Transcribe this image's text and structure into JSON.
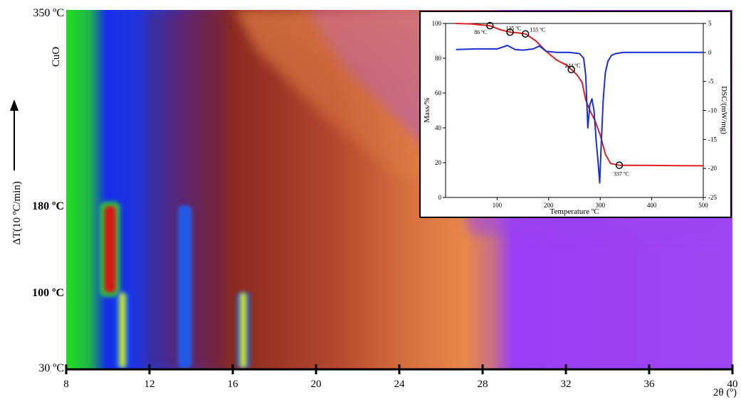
{
  "chart_data": [
    {
      "type": "heatmap",
      "title": "",
      "xlabel": "2θ (º)",
      "ylabel": "ΔT(10 ºC/min)",
      "xlim": [
        8,
        40
      ],
      "x_ticks": [
        8,
        12,
        16,
        20,
        24,
        28,
        32,
        36,
        40
      ],
      "x_tick_labels": [
        "8",
        "12",
        "16",
        "20",
        "24",
        "28",
        "32",
        "36",
        "40"
      ],
      "y_temperatures": [
        30,
        100,
        180,
        350
      ],
      "y_tick_labels": [
        "30 ºC",
        "100 ºC",
        "180 ºC",
        "350 ºC"
      ],
      "y_tick_bold": [
        false,
        true,
        true,
        false
      ],
      "phase_label": "CuO",
      "arrow_direction": "up",
      "colormap": [
        "#22e020",
        "#1530e8",
        "#8a2a20",
        "#e8884a",
        "#9a3ef5"
      ],
      "features": [
        {
          "two_theta": 10.1,
          "t_from": 100,
          "t_to": 180,
          "color": "#d81818",
          "label": "intense peak"
        },
        {
          "two_theta": 10.7,
          "t_from": 30,
          "t_to": 100,
          "color": "#c8e030",
          "label": "peak"
        },
        {
          "two_theta": 16.5,
          "t_from": 30,
          "t_to": 100,
          "color": "#c8e030",
          "label": "peak"
        },
        {
          "two_theta": 13.7,
          "t_from": 30,
          "t_to": 180,
          "color": "#1a58f0",
          "label": "peak"
        }
      ]
    },
    {
      "type": "line",
      "title": "",
      "xlabel": "Temperature ºC",
      "ylabel": "Mass/%",
      "y2label": "DSC/(mW/mg)",
      "xlim": [
        0,
        500
      ],
      "ylim": [
        0,
        100
      ],
      "y2lim": [
        -25,
        5
      ],
      "x_ticks": [
        100,
        200,
        300,
        400,
        500
      ],
      "y_ticks": [
        0,
        20,
        40,
        60,
        80,
        100
      ],
      "y2_ticks": [
        5,
        0,
        -5,
        -10,
        -15,
        -20,
        -25
      ],
      "series": [
        {
          "axis": "left",
          "color": "#e02020",
          "x": [
            20,
            50,
            86,
            105,
            125,
            140,
            155,
            175,
            195,
            215,
            235,
            244,
            255,
            265,
            272,
            280,
            290,
            300,
            310,
            320,
            337,
            360,
            400,
            450,
            500
          ],
          "values": [
            100,
            99.7,
            98.7,
            96.5,
            95,
            94.6,
            94,
            90,
            84,
            79,
            76,
            73.5,
            70.5,
            66,
            56,
            50,
            44,
            36,
            25,
            19.5,
            18.5,
            18.5,
            18.4,
            18.3,
            18.2
          ]
        },
        {
          "axis": "right",
          "color": "#1a2fd0",
          "x": [
            20,
            60,
            100,
            120,
            135,
            150,
            170,
            182,
            195,
            215,
            240,
            260,
            268,
            272,
            276,
            280,
            284,
            288,
            292,
            296,
            299,
            302,
            306,
            310,
            315,
            322,
            330,
            345,
            380,
            420,
            460,
            500
          ],
          "values": [
            0.5,
            0.6,
            0.6,
            1.2,
            0.5,
            0.4,
            0.6,
            1.1,
            0.2,
            0.0,
            0.0,
            -0.2,
            -1.0,
            -4.0,
            -13.0,
            -9.0,
            -8.0,
            -10.0,
            -15.0,
            -19.0,
            -22.5,
            -16.0,
            -8.0,
            -3.5,
            -1.5,
            -0.5,
            -0.2,
            0.0,
            0.0,
            0.0,
            0.0,
            0.0
          ]
        }
      ],
      "markers": [
        {
          "x": 86,
          "y": 98.7,
          "label": "86 ºC"
        },
        {
          "x": 125,
          "y": 95.0,
          "label": "125 ºC"
        },
        {
          "x": 155,
          "y": 94.0,
          "label": "155 ºC"
        },
        {
          "x": 244,
          "y": 73.5,
          "label": "244 ºC"
        },
        {
          "x": 337,
          "y": 18.5,
          "label": "337 ºC"
        }
      ]
    }
  ]
}
